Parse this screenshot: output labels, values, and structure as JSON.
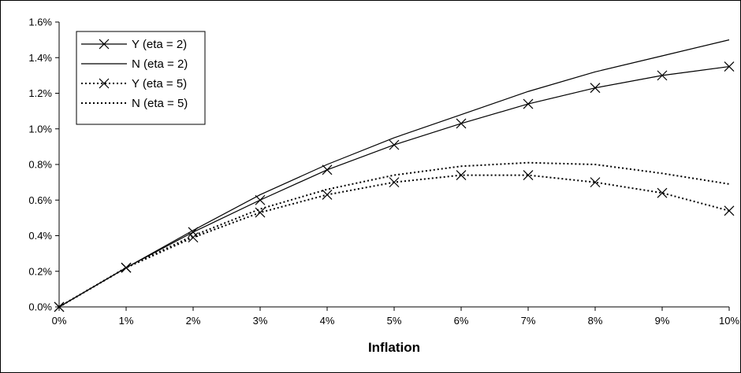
{
  "chart_data": {
    "type": "line",
    "title": "",
    "xlabel": "Inflation",
    "ylabel": "",
    "x": [
      0,
      1,
      2,
      3,
      4,
      5,
      6,
      7,
      8,
      9,
      10
    ],
    "x_tick_labels": [
      "0%",
      "1%",
      "2%",
      "3%",
      "4%",
      "5%",
      "6%",
      "7%",
      "8%",
      "9%",
      "10%"
    ],
    "y_tick_values": [
      0,
      0.2,
      0.4,
      0.6,
      0.8,
      1.0,
      1.2,
      1.4,
      1.6
    ],
    "y_tick_labels": [
      "0.0%",
      "0.2%",
      "0.4%",
      "0.6%",
      "0.8%",
      "1.0%",
      "1.2%",
      "1.4%",
      "1.6%"
    ],
    "xlim": [
      0,
      10
    ],
    "ylim": [
      0,
      1.6
    ],
    "grid": false,
    "legend_position": "top-left",
    "series": [
      {
        "name": "Y (eta = 2)",
        "style": "solid",
        "marker": "x",
        "color": "#000000",
        "values": [
          0,
          0.22,
          0.42,
          0.6,
          0.77,
          0.91,
          1.03,
          1.14,
          1.23,
          1.3,
          1.35
        ]
      },
      {
        "name": "N (eta = 2)",
        "style": "solid",
        "marker": "none",
        "color": "#000000",
        "values": [
          0,
          0.22,
          0.43,
          0.63,
          0.8,
          0.95,
          1.08,
          1.21,
          1.32,
          1.41,
          1.5
        ]
      },
      {
        "name": "Y (eta = 5)",
        "style": "dotted",
        "marker": "x",
        "color": "#000000",
        "values": [
          0,
          0.22,
          0.39,
          0.53,
          0.63,
          0.7,
          0.74,
          0.74,
          0.7,
          0.64,
          0.54
        ]
      },
      {
        "name": "N (eta = 5)",
        "style": "dotted",
        "marker": "none",
        "color": "#000000",
        "values": [
          0,
          0.22,
          0.4,
          0.55,
          0.66,
          0.74,
          0.79,
          0.81,
          0.8,
          0.75,
          0.69
        ]
      }
    ]
  }
}
